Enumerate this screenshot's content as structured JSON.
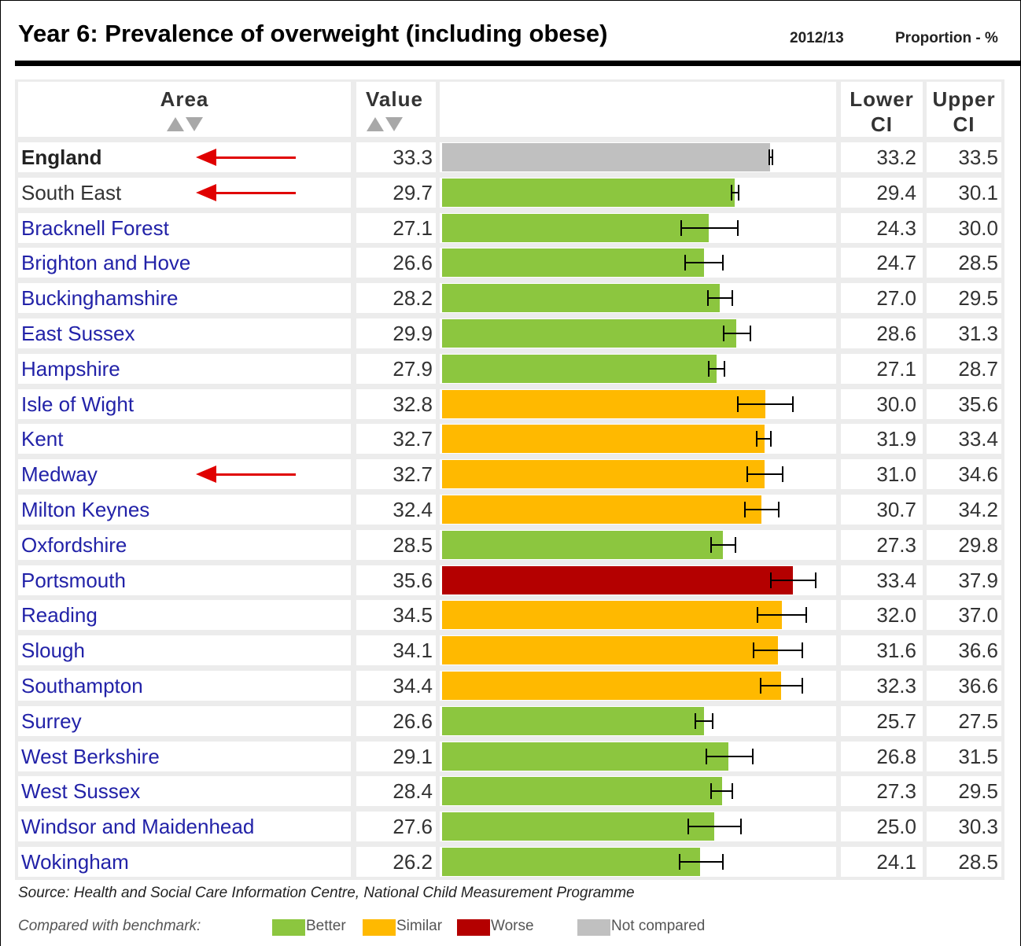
{
  "header": {
    "title": "Year 6: Prevalence of overweight (including obese)",
    "period": "2012/13",
    "measure": "Proportion - %"
  },
  "table": {
    "columns": [
      "Area",
      "Value",
      "Lower CI",
      "Upper CI"
    ],
    "xlim": [
      0,
      40
    ],
    "rows": [
      {
        "area": "England",
        "value": 33.3,
        "lower": 33.2,
        "upper": 33.5,
        "color": "#c0c0c0"
      },
      {
        "area": "South East",
        "value": 29.7,
        "lower": 29.4,
        "upper": 30.1,
        "color": "#8cc63f"
      },
      {
        "area": "Bracknell Forest",
        "value": 27.1,
        "lower": 24.3,
        "upper": {
          "value": 30,
          "label": "30.0"
        },
        "color": "#8cc63f"
      },
      {
        "area": "Brighton and Hove",
        "value": 26.6,
        "lower": 24.7,
        "upper": 28.5,
        "color": "#8cc63f"
      },
      {
        "area": "Buckinghamshire",
        "value": 28.2,
        "lower": {
          "value": 27,
          "label": "27.0"
        },
        "upper": 29.5,
        "color": "#8cc63f"
      },
      {
        "area": "East Sussex",
        "value": 29.9,
        "lower": 28.6,
        "upper": 31.3,
        "color": "#8cc63f"
      },
      {
        "area": "Hampshire",
        "value": 27.9,
        "lower": 27.1,
        "upper": 28.7,
        "color": "#8cc63f"
      },
      {
        "area": "Isle of Wight",
        "value": 32.8,
        "lower": {
          "value": 30,
          "label": "30.0"
        },
        "upper": 35.6,
        "color": "#ffb900"
      },
      {
        "area": "Kent",
        "value": 32.7,
        "lower": 31.9,
        "upper": 33.4,
        "color": "#ffb900"
      },
      {
        "area": "Medway",
        "value": 32.7,
        "lower": {
          "value": 31,
          "label": "31.0"
        },
        "upper": 34.6,
        "color": "#ffb900"
      },
      {
        "area": "Milton Keynes",
        "value": 32.4,
        "lower": 30.7,
        "upper": 34.2,
        "color": "#ffb900"
      },
      {
        "area": "Oxfordshire",
        "value": 28.5,
        "lower": 27.3,
        "upper": 29.8,
        "color": "#8cc63f"
      },
      {
        "area": "Portsmouth",
        "value": 35.6,
        "lower": 33.4,
        "upper": 37.9,
        "color": "#b40000"
      },
      {
        "area": "Reading",
        "value": 34.5,
        "lower": {
          "value": 32,
          "label": "32.0"
        },
        "upper": {
          "value": 37,
          "label": "37.0"
        },
        "color": "#ffb900"
      },
      {
        "area": "Slough",
        "value": 34.1,
        "lower": 31.6,
        "upper": 36.6,
        "color": "#ffb900"
      },
      {
        "area": "Southampton",
        "value": 34.4,
        "lower": 32.3,
        "upper": 36.6,
        "color": "#ffb900"
      },
      {
        "area": "Surrey",
        "value": 26.6,
        "lower": 25.7,
        "upper": 27.5,
        "color": "#8cc63f"
      },
      {
        "area": "West Berkshire",
        "value": 29.1,
        "lower": 26.8,
        "upper": 31.5,
        "color": "#8cc63f"
      },
      {
        "area": "West Sussex",
        "value": 28.4,
        "lower": 27.3,
        "upper": 29.5,
        "color": "#8cc63f"
      },
      {
        "area": "Windsor and Maidenhead",
        "value": 27.6,
        "lower": {
          "value": 25,
          "label": "25.0"
        },
        "upper": 30.3,
        "color": "#8cc63f"
      },
      {
        "area": "Wokingham",
        "value": 26.2,
        "lower": 24.1,
        "upper": 28.5,
        "color": "#8cc63f"
      }
    ]
  },
  "source": "Source: Health and Social Care Information Centre, National Child Measurement Programme",
  "legend": {
    "label": "Compared with benchmark:",
    "items": [
      {
        "name": "Better",
        "color": "#8cc63f"
      },
      {
        "name": "Similar",
        "color": "#ffb900"
      },
      {
        "name": "Worse",
        "color": "#b40000"
      },
      {
        "name": "Not compared",
        "color": "#c0c0c0"
      }
    ]
  }
}
